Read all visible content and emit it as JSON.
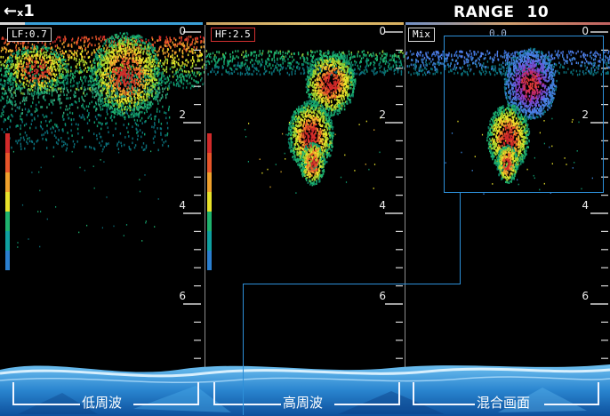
{
  "topbar": {
    "zoom_arrow": "←",
    "zoom_x": "x",
    "zoom_value": "1",
    "range_label": "RANGE",
    "range_value": "10"
  },
  "panels": [
    {
      "tag": "LF:0.7",
      "depth_labels": [
        "0",
        "2",
        "4",
        "6"
      ]
    },
    {
      "tag": "HF:2.5",
      "depth_labels": [
        "0",
        "2",
        "4",
        "6"
      ]
    },
    {
      "tag": "Mix",
      "value": "0.0",
      "depth_labels": [
        "0",
        "2",
        "4",
        "6"
      ]
    }
  ],
  "footer": {
    "labels": [
      "低周波",
      "高周波",
      "混合画面"
    ]
  },
  "colors": {
    "background": "#000000",
    "zoom_box": "#2d8fd8",
    "hf_tag_border": "#d23030",
    "footer_water": "#1d77c6"
  }
}
